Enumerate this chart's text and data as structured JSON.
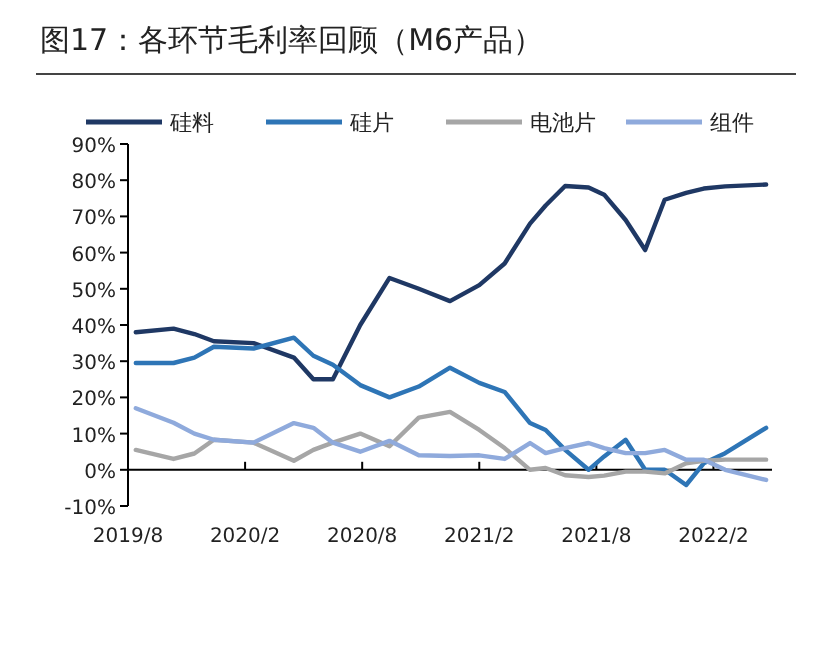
{
  "chart_data": {
    "type": "line",
    "title": "图17：各环节毛利率回顾（M6产品）",
    "x": [
      "2019-08-13",
      "2019-10-11",
      "2019-11-13",
      "2019-12-13",
      "2020-02-14",
      "2020-04-16",
      "2020-05-16",
      "2020-06-16",
      "2020-07-28",
      "2020-09-13",
      "2020-10-28",
      "2020-12-16",
      "2021-02-01",
      "2021-03-10",
      "2021-04-19",
      "2021-05-13",
      "2021-06-13",
      "2021-07-19",
      "2021-08-13",
      "2021-09-16",
      "2021-10-16",
      "2021-11-16",
      "2021-12-19",
      "2022-01-16",
      "2022-02-19",
      "2022-04-22"
    ],
    "series": [
      {
        "name": "硅料",
        "color": "#1f3864",
        "values": [
          38,
          39,
          37.5,
          35.5,
          35,
          31,
          25,
          25,
          40,
          53,
          50,
          46.6,
          51,
          57,
          68,
          73,
          78.4,
          78,
          76,
          69,
          60.7,
          74.6,
          76.5,
          77.7,
          78.3,
          78.8
        ]
      },
      {
        "name": "硅片",
        "color": "#2e75b6",
        "values": [
          29.5,
          29.5,
          31,
          34,
          33.5,
          36.5,
          31.5,
          29,
          23.4,
          20,
          23,
          28.2,
          24,
          21.5,
          12.9,
          11,
          5.5,
          0,
          3.7,
          8.3,
          0,
          0,
          -4.2,
          1.8,
          4.6,
          11.6
        ]
      },
      {
        "name": "电池片",
        "color": "#a6a6a6",
        "values": [
          5.5,
          3,
          4.5,
          8.3,
          7.5,
          2.5,
          5.5,
          7.5,
          10,
          6.5,
          14.4,
          16,
          11,
          6,
          0,
          0.5,
          -1.5,
          -2,
          -1.6,
          -0.5,
          -0.5,
          -1,
          1.8,
          2.5,
          2.8,
          2.8
        ]
      },
      {
        "name": "组件",
        "color": "#8faadc",
        "values": [
          17,
          13,
          10,
          8.3,
          7.5,
          12.9,
          11.6,
          7.5,
          5,
          8,
          4,
          3.8,
          4,
          3,
          7.4,
          4.6,
          6,
          7.4,
          6,
          4.6,
          4.6,
          5.5,
          2.8,
          2.8,
          0,
          -2.8
        ]
      }
    ],
    "xlim": [
      "2019-08-01",
      "2022-05-01"
    ],
    "xticks": [
      {
        "value": "2019-08-01",
        "label": "2019/8"
      },
      {
        "value": "2020-02-01",
        "label": "2020/2"
      },
      {
        "value": "2020-08-01",
        "label": "2020/8"
      },
      {
        "value": "2021-02-01",
        "label": "2021/2"
      },
      {
        "value": "2021-08-01",
        "label": "2021/8"
      },
      {
        "value": "2022-02-01",
        "label": "2022/2"
      }
    ],
    "ylim": [
      -10,
      90
    ],
    "yticks": [
      {
        "value": -10,
        "label": "-10%"
      },
      {
        "value": 0,
        "label": "0%"
      },
      {
        "value": 10,
        "label": "10%"
      },
      {
        "value": 20,
        "label": "20%"
      },
      {
        "value": 30,
        "label": "30%"
      },
      {
        "value": 40,
        "label": "40%"
      },
      {
        "value": 50,
        "label": "50%"
      },
      {
        "value": 60,
        "label": "60%"
      },
      {
        "value": 70,
        "label": "70%"
      },
      {
        "value": 80,
        "label": "80%"
      },
      {
        "value": 90,
        "label": "90%"
      }
    ],
    "legend": "top",
    "marker": "none",
    "line_style": "solid"
  }
}
